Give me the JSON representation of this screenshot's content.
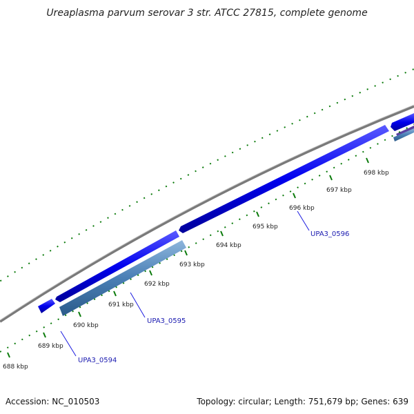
{
  "title": "Ureaplasma parvum serovar 3 str. ATCC 27815, complete genome",
  "footer": {
    "accession": "Accession: NC_010503",
    "summary": "Topology: circular; Length: 751,679 bp; Genes: 639"
  },
  "ticks": [
    {
      "label": "688 kbp"
    },
    {
      "label": "689 kbp"
    },
    {
      "label": "690 kbp"
    },
    {
      "label": "691 kbp"
    },
    {
      "label": "692 kbp"
    },
    {
      "label": "693 kbp"
    },
    {
      "label": "694 kbp"
    },
    {
      "label": "695 kbp"
    },
    {
      "label": "696 kbp"
    },
    {
      "label": "697 kbp"
    },
    {
      "label": "698 kbp"
    }
  ],
  "genes": [
    {
      "name": "UPA3_0594"
    },
    {
      "name": "UPA3_0595"
    },
    {
      "name": "UPA3_0596"
    }
  ],
  "colors": {
    "backbone": "#808080",
    "forward_gene": "#0000ee",
    "reverse_gene": "#4a7fb5",
    "tick": "#0a7a0a",
    "label_leader": "#1a1ae0"
  }
}
